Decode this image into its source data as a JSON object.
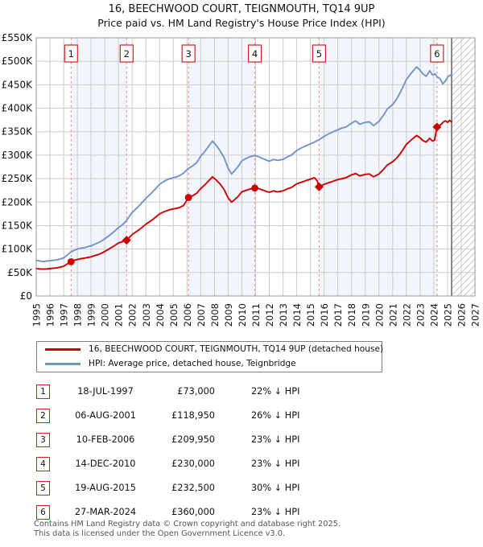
{
  "title": "16, BEECHWOOD COURT, TEIGNMOUTH, TQ14 9UP",
  "subtitle": "Price paid vs. HM Land Registry's House Price Index (HPI)",
  "chart_data": {
    "type": "line",
    "x_axis": {
      "min": 1995,
      "max": 2027,
      "tick_labels": [
        "1995",
        "1996",
        "1997",
        "1998",
        "1999",
        "2000",
        "2001",
        "2002",
        "2003",
        "2004",
        "2005",
        "2006",
        "2007",
        "2008",
        "2009",
        "2010",
        "2011",
        "2012",
        "2013",
        "2014",
        "2015",
        "2016",
        "2017",
        "2018",
        "2019",
        "2020",
        "2021",
        "2022",
        "2023",
        "2024",
        "2025",
        "2026",
        "2027"
      ]
    },
    "y_axis": {
      "min_k": 0,
      "max_k": 550,
      "tick_step_k": 50,
      "tick_labels": [
        "£0",
        "£50K",
        "£100K",
        "£150K",
        "£200K",
        "£250K",
        "£300K",
        "£350K",
        "£400K",
        "£450K",
        "£500K",
        "£550K"
      ]
    },
    "future_start_year": 2025.3,
    "shaded_bands": [
      [
        1997.545,
        2001.594
      ],
      [
        2006.11,
        2010.95
      ],
      [
        2015.63,
        2024.235
      ]
    ],
    "colors": {
      "property_line": "#cc0000",
      "hpi_line": "#7095c9",
      "sale_dash": "#f48a8a",
      "band_fill": "#f2f5fc",
      "grid": "#cccccc",
      "axis_border": "#999999",
      "future_line": "#888888",
      "hatch": "#c9c9c9",
      "flag_border": "#cc2222",
      "flag_text": "#111111"
    },
    "series": [
      {
        "name": "HPI: Average price, detached house, Teignbridge",
        "color": "#7095c9",
        "values_k": [
          [
            1995.0,
            76
          ],
          [
            1995.25,
            74.5
          ],
          [
            1995.5,
            73.5
          ],
          [
            1995.75,
            74.5
          ],
          [
            1996.0,
            75
          ],
          [
            1996.25,
            76
          ],
          [
            1996.5,
            77
          ],
          [
            1996.75,
            79
          ],
          [
            1997.0,
            81
          ],
          [
            1997.25,
            87
          ],
          [
            1997.545,
            94
          ],
          [
            1997.75,
            97
          ],
          [
            1998.0,
            100
          ],
          [
            1998.25,
            102
          ],
          [
            1998.5,
            103
          ],
          [
            1998.75,
            105
          ],
          [
            1999.0,
            107
          ],
          [
            1999.25,
            110
          ],
          [
            1999.5,
            113
          ],
          [
            1999.75,
            117
          ],
          [
            2000.0,
            122
          ],
          [
            2000.25,
            127
          ],
          [
            2000.5,
            133
          ],
          [
            2000.75,
            139
          ],
          [
            2001.0,
            146
          ],
          [
            2001.3,
            152
          ],
          [
            2001.594,
            161
          ],
          [
            2001.8,
            170
          ],
          [
            2002.0,
            178
          ],
          [
            2002.25,
            185
          ],
          [
            2002.5,
            192
          ],
          [
            2002.75,
            200
          ],
          [
            2003.0,
            208
          ],
          [
            2003.25,
            215
          ],
          [
            2003.5,
            222
          ],
          [
            2003.75,
            230
          ],
          [
            2004.0,
            238
          ],
          [
            2004.25,
            243
          ],
          [
            2004.5,
            247
          ],
          [
            2004.75,
            250
          ],
          [
            2005.0,
            252
          ],
          [
            2005.25,
            254
          ],
          [
            2005.5,
            257
          ],
          [
            2005.75,
            262
          ],
          [
            2006.11,
            272
          ],
          [
            2006.4,
            277
          ],
          [
            2006.7,
            284
          ],
          [
            2007.0,
            298
          ],
          [
            2007.3,
            308
          ],
          [
            2007.6,
            320
          ],
          [
            2007.85,
            330
          ],
          [
            2008.1,
            322
          ],
          [
            2008.4,
            310
          ],
          [
            2008.7,
            295
          ],
          [
            2009.0,
            272
          ],
          [
            2009.25,
            260
          ],
          [
            2009.5,
            268
          ],
          [
            2009.75,
            277
          ],
          [
            2010.0,
            288
          ],
          [
            2010.3,
            293
          ],
          [
            2010.6,
            297
          ],
          [
            2010.95,
            299
          ],
          [
            2011.2,
            297
          ],
          [
            2011.5,
            293
          ],
          [
            2011.75,
            290
          ],
          [
            2012.0,
            287
          ],
          [
            2012.3,
            291
          ],
          [
            2012.6,
            289
          ],
          [
            2013.0,
            291
          ],
          [
            2013.3,
            296
          ],
          [
            2013.6,
            300
          ],
          [
            2014.0,
            310
          ],
          [
            2014.3,
            315
          ],
          [
            2014.6,
            319
          ],
          [
            2015.0,
            324
          ],
          [
            2015.3,
            328
          ],
          [
            2015.63,
            333
          ],
          [
            2016.0,
            340
          ],
          [
            2016.3,
            345
          ],
          [
            2016.6,
            349
          ],
          [
            2017.0,
            354
          ],
          [
            2017.3,
            358
          ],
          [
            2017.6,
            360
          ],
          [
            2018.0,
            368
          ],
          [
            2018.3,
            373
          ],
          [
            2018.6,
            366
          ],
          [
            2019.0,
            370
          ],
          [
            2019.3,
            371
          ],
          [
            2019.6,
            363
          ],
          [
            2020.0,
            372
          ],
          [
            2020.3,
            384
          ],
          [
            2020.6,
            398
          ],
          [
            2021.0,
            408
          ],
          [
            2021.3,
            420
          ],
          [
            2021.6,
            436
          ],
          [
            2022.0,
            461
          ],
          [
            2022.3,
            473
          ],
          [
            2022.5,
            480
          ],
          [
            2022.75,
            488
          ],
          [
            2023.0,
            481
          ],
          [
            2023.2,
            473
          ],
          [
            2023.45,
            468
          ],
          [
            2023.7,
            480
          ],
          [
            2023.9,
            471
          ],
          [
            2024.1,
            473
          ],
          [
            2024.235,
            467
          ],
          [
            2024.45,
            463
          ],
          [
            2024.65,
            452
          ],
          [
            2024.85,
            458
          ],
          [
            2025.05,
            468
          ],
          [
            2025.3,
            472
          ]
        ]
      },
      {
        "name": "16, BEECHWOOD COURT, TEIGNMOUTH, TQ14 9UP (detached house)",
        "color": "#cc0000",
        "values_k": [
          [
            1995.0,
            58.5
          ],
          [
            1995.25,
            57.8
          ],
          [
            1995.5,
            57.2
          ],
          [
            1995.75,
            57.8
          ],
          [
            1996.0,
            58.5
          ],
          [
            1996.25,
            59.2
          ],
          [
            1996.5,
            60
          ],
          [
            1996.75,
            61.5
          ],
          [
            1997.0,
            63.5
          ],
          [
            1997.25,
            68
          ],
          [
            1997.545,
            73
          ],
          [
            1997.75,
            75.5
          ],
          [
            1998.0,
            78
          ],
          [
            1998.25,
            79.5
          ],
          [
            1998.5,
            80.5
          ],
          [
            1998.75,
            82
          ],
          [
            1999.0,
            83.5
          ],
          [
            1999.25,
            86
          ],
          [
            1999.5,
            88
          ],
          [
            1999.75,
            91
          ],
          [
            2000.0,
            95
          ],
          [
            2000.25,
            99
          ],
          [
            2000.5,
            103.5
          ],
          [
            2000.75,
            108
          ],
          [
            2001.0,
            113
          ],
          [
            2001.3,
            116
          ],
          [
            2001.594,
            118.95
          ],
          [
            2001.8,
            125
          ],
          [
            2002.0,
            131
          ],
          [
            2002.25,
            136
          ],
          [
            2002.5,
            141
          ],
          [
            2002.75,
            147
          ],
          [
            2003.0,
            153
          ],
          [
            2003.25,
            158
          ],
          [
            2003.5,
            163
          ],
          [
            2003.75,
            169
          ],
          [
            2004.0,
            175
          ],
          [
            2004.25,
            178.5
          ],
          [
            2004.5,
            181.5
          ],
          [
            2004.75,
            184
          ],
          [
            2005.0,
            185.5
          ],
          [
            2005.25,
            187
          ],
          [
            2005.5,
            189
          ],
          [
            2005.75,
            193
          ],
          [
            2006.11,
            209.95
          ],
          [
            2006.4,
            213.5
          ],
          [
            2006.7,
            219
          ],
          [
            2007.0,
            229
          ],
          [
            2007.3,
            237
          ],
          [
            2007.6,
            246
          ],
          [
            2007.85,
            254
          ],
          [
            2008.1,
            248
          ],
          [
            2008.4,
            239
          ],
          [
            2008.7,
            227
          ],
          [
            2009.0,
            209
          ],
          [
            2009.25,
            200
          ],
          [
            2009.5,
            206
          ],
          [
            2009.75,
            213
          ],
          [
            2010.0,
            222
          ],
          [
            2010.3,
            225
          ],
          [
            2010.6,
            228
          ],
          [
            2010.95,
            230
          ],
          [
            2011.2,
            229
          ],
          [
            2011.5,
            226
          ],
          [
            2011.75,
            223
          ],
          [
            2012.0,
            221
          ],
          [
            2012.3,
            224
          ],
          [
            2012.6,
            222
          ],
          [
            2013.0,
            224
          ],
          [
            2013.3,
            228
          ],
          [
            2013.6,
            231
          ],
          [
            2014.0,
            239
          ],
          [
            2014.3,
            242
          ],
          [
            2014.6,
            245
          ],
          [
            2015.0,
            249
          ],
          [
            2015.3,
            252
          ],
          [
            2015.5,
            245
          ],
          [
            2015.63,
            232.5
          ],
          [
            2016.0,
            238
          ],
          [
            2016.3,
            241
          ],
          [
            2016.6,
            244
          ],
          [
            2017.0,
            248
          ],
          [
            2017.3,
            250
          ],
          [
            2017.6,
            252
          ],
          [
            2018.0,
            258
          ],
          [
            2018.3,
            261
          ],
          [
            2018.6,
            256
          ],
          [
            2019.0,
            259
          ],
          [
            2019.3,
            260
          ],
          [
            2019.6,
            254
          ],
          [
            2020.0,
            260
          ],
          [
            2020.3,
            269
          ],
          [
            2020.6,
            279
          ],
          [
            2021.0,
            286
          ],
          [
            2021.3,
            294
          ],
          [
            2021.6,
            305
          ],
          [
            2022.0,
            323
          ],
          [
            2022.3,
            331
          ],
          [
            2022.5,
            336
          ],
          [
            2022.75,
            342
          ],
          [
            2023.0,
            337
          ],
          [
            2023.2,
            331
          ],
          [
            2023.45,
            328
          ],
          [
            2023.7,
            336
          ],
          [
            2023.9,
            330
          ],
          [
            2024.05,
            332
          ],
          [
            2024.235,
            360
          ],
          [
            2024.4,
            363
          ],
          [
            2024.55,
            366
          ],
          [
            2024.7,
            371
          ],
          [
            2024.85,
            373
          ],
          [
            2025.0,
            370
          ],
          [
            2025.15,
            374
          ],
          [
            2025.3,
            371
          ]
        ]
      }
    ],
    "sales": [
      {
        "num": "1",
        "year": 1997.545,
        "price_k": 73,
        "marker": "circle"
      },
      {
        "num": "2",
        "year": 2001.594,
        "price_k": 118.95,
        "marker": "diamond"
      },
      {
        "num": "3",
        "year": 2006.11,
        "price_k": 209.95,
        "marker": "circle"
      },
      {
        "num": "4",
        "year": 2010.95,
        "price_k": 230,
        "marker": "circle"
      },
      {
        "num": "5",
        "year": 2015.63,
        "price_k": 232.5,
        "marker": "diamond"
      },
      {
        "num": "6",
        "year": 2024.235,
        "price_k": 360,
        "marker": "diamond"
      }
    ]
  },
  "legend": {
    "items": [
      {
        "label": "16, BEECHWOOD COURT, TEIGNMOUTH, TQ14 9UP (detached house)",
        "color": "#cc0000"
      },
      {
        "label": "HPI: Average price, detached house, Teignbridge",
        "color": "#7095c9"
      }
    ]
  },
  "table": {
    "rows": [
      {
        "num": "1",
        "date": "18-JUL-1997",
        "price": "£73,000",
        "diff": "22% ↓ HPI"
      },
      {
        "num": "2",
        "date": "06-AUG-2001",
        "price": "£118,950",
        "diff": "26% ↓ HPI"
      },
      {
        "num": "3",
        "date": "10-FEB-2006",
        "price": "£209,950",
        "diff": "23% ↓ HPI"
      },
      {
        "num": "4",
        "date": "14-DEC-2010",
        "price": "£230,000",
        "diff": "23% ↓ HPI"
      },
      {
        "num": "5",
        "date": "19-AUG-2015",
        "price": "£232,500",
        "diff": "30% ↓ HPI"
      },
      {
        "num": "6",
        "date": "27-MAR-2024",
        "price": "£360,000",
        "diff": "23% ↓ HPI"
      }
    ]
  },
  "footer": {
    "line1": "Contains HM Land Registry data © Crown copyright and database right 2025.",
    "line2": "This data is licensed under the Open Government Licence v3.0."
  }
}
